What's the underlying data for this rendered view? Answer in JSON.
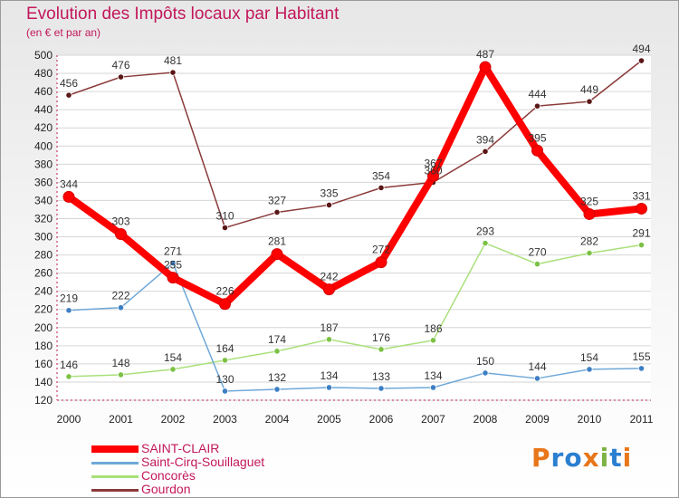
{
  "header": {
    "title": "Evolution des Impôts locaux par Habitant",
    "subtitle": "(en € et par an)"
  },
  "logo": {
    "text": "Proxiti",
    "colors": [
      "#e8761a",
      "#2a7fd0",
      "#2a7fd0",
      "#e8761a",
      "#7cb342",
      "#2a7fd0",
      "#e8761a"
    ]
  },
  "chart_data": {
    "type": "line",
    "title": "Evolution des Impôts locaux par Habitant",
    "subtitle": "(en € et par an)",
    "xlabel": "",
    "ylabel": "",
    "ylim": [
      120,
      500
    ],
    "yticks": [
      120,
      140,
      160,
      180,
      200,
      220,
      240,
      260,
      280,
      300,
      320,
      340,
      360,
      380,
      400,
      420,
      440,
      460,
      480,
      500
    ],
    "grid": "horizontal",
    "legend": "bottom-left",
    "x": [
      "2000",
      "2001",
      "2002",
      "2003",
      "2004",
      "2005",
      "2006",
      "2007",
      "2008",
      "2009",
      "2010",
      "2011"
    ],
    "series": [
      {
        "name": "SAINT-CLAIR",
        "color": "#ff0000",
        "marker": "#d20000",
        "values": [
          344,
          303,
          255,
          226,
          281,
          242,
          272,
          367,
          487,
          395,
          325,
          331
        ]
      },
      {
        "name": "Saint-Cirq-Souillaguet",
        "color": "#6fa8d8",
        "marker": "#3d7fc4",
        "values": [
          219,
          222,
          271,
          130,
          132,
          134,
          133,
          134,
          150,
          144,
          154,
          155
        ]
      },
      {
        "name": "Concorès",
        "color": "#a9e07a",
        "marker": "#7cc144",
        "values": [
          146,
          148,
          154,
          164,
          174,
          187,
          176,
          186,
          293,
          270,
          282,
          291
        ]
      },
      {
        "name": "Gourdon",
        "color": "#8b3a3a",
        "marker": "#5a1616",
        "values": [
          456,
          476,
          481,
          310,
          327,
          335,
          354,
          360,
          394,
          444,
          449,
          494
        ]
      }
    ]
  }
}
